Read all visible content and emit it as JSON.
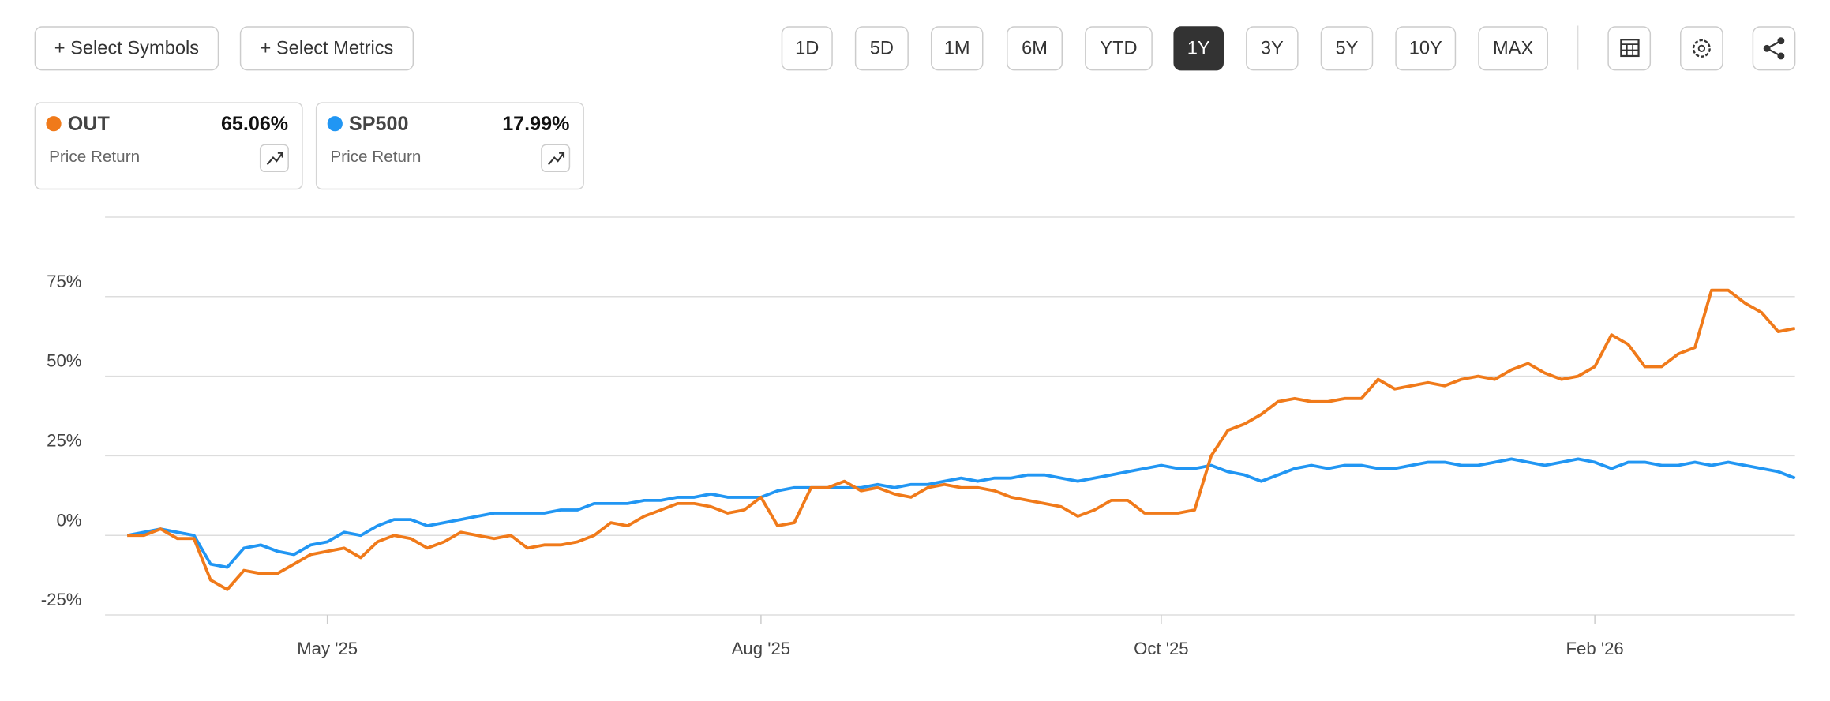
{
  "controls": {
    "buttons": [
      "+ Select Symbols",
      "+ Select Metrics"
    ],
    "ranges": [
      "1D",
      "5D",
      "1M",
      "6M",
      "YTD",
      "1Y",
      "3Y",
      "5Y",
      "10Y",
      "MAX"
    ],
    "active_range": "1Y"
  },
  "chart_data": {
    "type": "line",
    "categories": [
      null,
      null,
      null,
      null,
      null,
      null,
      null,
      null,
      null,
      null,
      null,
      null,
      "May '25",
      null,
      null,
      null,
      null,
      null,
      null,
      null,
      null,
      null,
      null,
      null,
      null,
      null,
      null,
      null,
      null,
      null,
      null,
      null,
      null,
      null,
      null,
      null,
      null,
      null,
      "Aug '25",
      null,
      null,
      null,
      null,
      null,
      null,
      null,
      null,
      null,
      null,
      null,
      null,
      null,
      null,
      null,
      null,
      null,
      null,
      null,
      null,
      null,
      null,
      null,
      "Oct '25",
      null,
      null,
      null,
      null,
      null,
      null,
      null,
      null,
      null,
      null,
      null,
      null,
      null,
      null,
      null,
      null,
      null,
      null,
      null,
      null,
      null,
      null,
      null,
      null,
      null,
      "Feb '26",
      null,
      null,
      null,
      null,
      null,
      null,
      null,
      null,
      null,
      null,
      null,
      null
    ],
    "series": [
      {
        "name": "OUT",
        "color": "#f07a1a",
        "value_label": "65.06%",
        "subtitle": "Price Return",
        "values": [
          0,
          0,
          2,
          -1,
          -1,
          -14,
          -17,
          -11,
          -12,
          -12,
          -9,
          -6,
          -5,
          -4,
          -7,
          -2,
          0,
          -1,
          -4,
          -2,
          1,
          0,
          -1,
          0,
          -4,
          -3,
          -3,
          -2,
          0,
          4,
          3,
          6,
          8,
          10,
          10,
          9,
          7,
          8,
          12,
          3,
          4,
          15,
          15,
          17,
          14,
          15,
          13,
          12,
          15,
          16,
          15,
          15,
          14,
          12,
          11,
          10,
          9,
          6,
          8,
          11,
          11,
          7,
          7,
          7,
          8,
          25,
          33,
          35,
          38,
          42,
          43,
          42,
          42,
          43,
          43,
          49,
          46,
          47,
          48,
          47,
          49,
          50,
          49,
          52,
          54,
          51,
          49,
          50,
          53,
          63,
          60,
          53,
          53,
          57,
          59,
          77,
          77,
          73,
          70,
          64,
          65.06
        ]
      },
      {
        "name": "SP500",
        "color": "#2196f3",
        "value_label": "17.99%",
        "subtitle": "Price Return",
        "values": [
          0,
          1,
          2,
          1,
          0,
          -9,
          -10,
          -4,
          -3,
          -5,
          -6,
          -3,
          -2,
          1,
          0,
          3,
          5,
          5,
          3,
          4,
          5,
          6,
          7,
          7,
          7,
          7,
          8,
          8,
          10,
          10,
          10,
          11,
          11,
          12,
          12,
          13,
          12,
          12,
          12,
          14,
          15,
          15,
          15,
          15,
          15,
          16,
          15,
          16,
          16,
          17,
          18,
          17,
          18,
          18,
          19,
          19,
          18,
          17,
          18,
          19,
          20,
          21,
          22,
          21,
          21,
          22,
          20,
          19,
          17,
          19,
          21,
          22,
          21,
          22,
          22,
          21,
          21,
          22,
          23,
          23,
          22,
          22,
          23,
          24,
          23,
          22,
          23,
          24,
          23,
          21,
          23,
          23,
          22,
          22,
          23,
          22,
          23,
          22,
          21,
          20,
          17.99
        ]
      }
    ],
    "ylim": [
      -25,
      100
    ],
    "yticks": [
      {
        "value": -25,
        "label": "-25%"
      },
      {
        "value": 0,
        "label": "0%"
      },
      {
        "value": 25,
        "label": "25%"
      },
      {
        "value": 50,
        "label": "50%"
      },
      {
        "value": 75,
        "label": "75%"
      }
    ],
    "grid": true
  }
}
